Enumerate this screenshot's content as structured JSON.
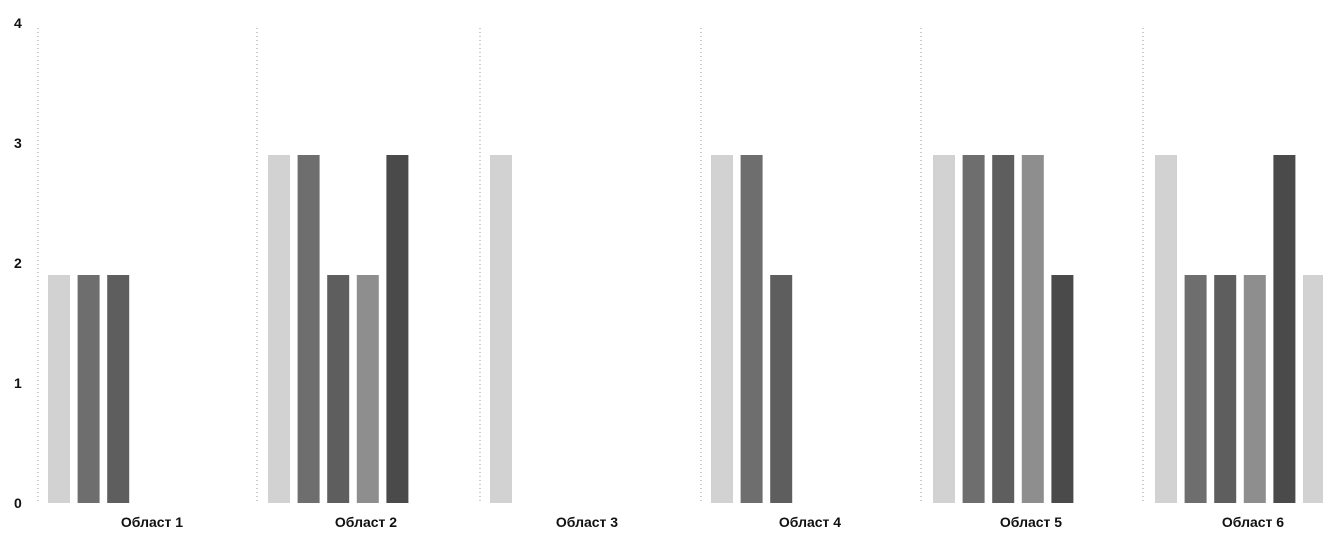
{
  "chart_data": {
    "type": "bar",
    "title": "",
    "xlabel": "",
    "ylabel": "",
    "ylim": [
      0,
      4
    ],
    "yticks": [
      "0",
      "1",
      "2",
      "3",
      "4"
    ],
    "grid": false,
    "legend": "none",
    "categories": [
      "Област 1",
      "Област 2",
      "Област 3",
      "Област 4",
      "Област 5",
      "Област 6"
    ],
    "bar_colors": [
      "#d2d2d2",
      "#6e6e6e",
      "#5e5e5e",
      "#8e8e8e",
      "#4a4a4a"
    ],
    "groups": [
      {
        "category": "Област 1",
        "values": [
          1.9,
          1.9,
          1.9
        ]
      },
      {
        "category": "Област 2",
        "values": [
          2.9,
          2.9,
          1.9,
          1.9,
          2.9
        ]
      },
      {
        "category": "Област 3",
        "values": [
          2.9
        ]
      },
      {
        "category": "Област 4",
        "values": [
          2.9,
          2.9,
          1.9
        ]
      },
      {
        "category": "Област 5",
        "values": [
          2.9,
          2.9,
          2.9,
          2.9,
          1.9
        ]
      },
      {
        "category": "Област 6",
        "values": [
          2.9,
          1.9,
          1.9,
          1.9,
          2.9,
          1.9
        ]
      }
    ]
  }
}
